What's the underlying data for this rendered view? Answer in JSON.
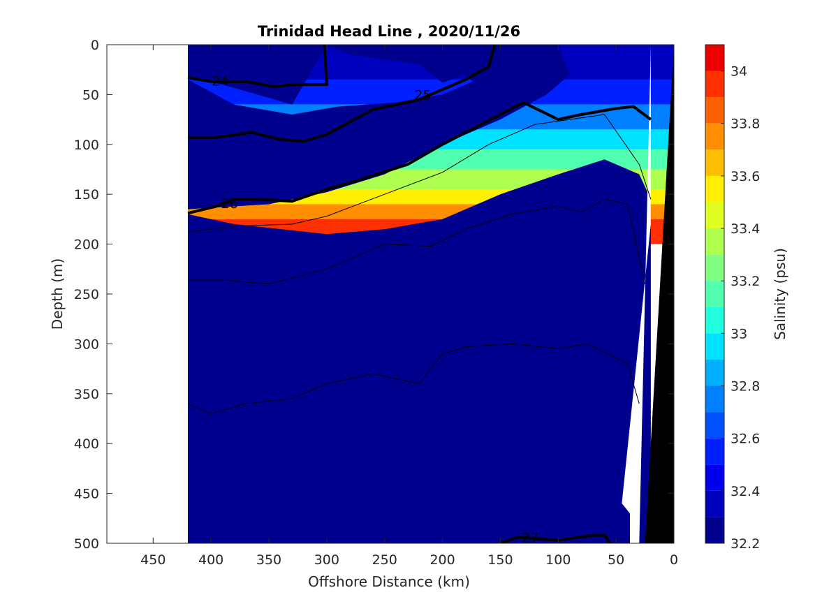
{
  "chart_data": {
    "type": "heatmap",
    "title": "Trinidad Head Line , 2020/11/26",
    "xlabel": "Offshore Distance (km)",
    "ylabel": "Depth (m)",
    "xlim": [
      490,
      0
    ],
    "ylim": [
      0,
      500
    ],
    "x_reversed": true,
    "y_reversed": true,
    "x_ticks": [
      {
        "value": 450,
        "label": "450"
      },
      {
        "value": 400,
        "label": "400"
      },
      {
        "value": 350,
        "label": "350"
      },
      {
        "value": 300,
        "label": "300"
      },
      {
        "value": 250,
        "label": "250"
      },
      {
        "value": 200,
        "label": "200"
      },
      {
        "value": 150,
        "label": "150"
      },
      {
        "value": 100,
        "label": "100"
      },
      {
        "value": 50,
        "label": "50"
      },
      {
        "value": 0,
        "label": "0"
      }
    ],
    "y_ticks": [
      {
        "value": 0,
        "label": "0"
      },
      {
        "value": 50,
        "label": "50"
      },
      {
        "value": 100,
        "label": "100"
      },
      {
        "value": 150,
        "label": "150"
      },
      {
        "value": 200,
        "label": "200"
      },
      {
        "value": 250,
        "label": "250"
      },
      {
        "value": 300,
        "label": "300"
      },
      {
        "value": 350,
        "label": "350"
      },
      {
        "value": 400,
        "label": "400"
      },
      {
        "value": 450,
        "label": "450"
      },
      {
        "value": 500,
        "label": "500"
      }
    ],
    "colorbar": {
      "label": "Salinity (psu)",
      "range": [
        32.2,
        34.1
      ],
      "levels": [
        32.2,
        32.3,
        32.4,
        32.5,
        32.6,
        32.7,
        32.8,
        32.9,
        33.0,
        33.1,
        33.2,
        33.3,
        33.4,
        33.5,
        33.6,
        33.7,
        33.8,
        33.9,
        34.0,
        34.1
      ],
      "colors": [
        "#00008f",
        "#0000bf",
        "#0000ef",
        "#0020ff",
        "#0050ff",
        "#0080ff",
        "#00b0ff",
        "#00e0ff",
        "#20ffdf",
        "#50ffaf",
        "#80ff80",
        "#afff50",
        "#dfff20",
        "#ffef00",
        "#ffbf00",
        "#ff8f00",
        "#ff6000",
        "#ff3000",
        "#ef0000",
        "#bf0000"
      ],
      "ticks": [
        {
          "value": 32.2,
          "label": "32.2"
        },
        {
          "value": 32.4,
          "label": "32.4"
        },
        {
          "value": 32.6,
          "label": "32.6"
        },
        {
          "value": 32.8,
          "label": "32.8"
        },
        {
          "value": 33.0,
          "label": "33"
        },
        {
          "value": 33.2,
          "label": "33.2"
        },
        {
          "value": 33.4,
          "label": "33.4"
        },
        {
          "value": 33.6,
          "label": "33.6"
        },
        {
          "value": 33.8,
          "label": "33.8"
        },
        {
          "value": 34.0,
          "label": "34"
        }
      ]
    },
    "data_extent_km": [
      0,
      420
    ],
    "salinity_bands": [
      {
        "salinity": 32.3,
        "points": [
          [
            420,
            0
          ],
          [
            300,
            0
          ],
          [
            280,
            10
          ],
          [
            220,
            20
          ],
          [
            200,
            38
          ],
          [
            180,
            30
          ],
          [
            160,
            52
          ],
          [
            140,
            22
          ],
          [
            130,
            0
          ],
          [
            300,
            0
          ],
          [
            330,
            60
          ],
          [
            360,
            50
          ],
          [
            390,
            40
          ],
          [
            420,
            33
          ]
        ]
      },
      {
        "salinity": 33.5,
        "points": [
          [
            420,
            35
          ],
          [
            380,
            60
          ],
          [
            330,
            70
          ],
          [
            290,
            62
          ],
          [
            240,
            58
          ],
          [
            200,
            50
          ],
          [
            170,
            35
          ],
          [
            150,
            20
          ],
          [
            130,
            0
          ],
          [
            100,
            0
          ],
          [
            90,
            30
          ],
          [
            110,
            50
          ],
          [
            150,
            75
          ],
          [
            200,
            100
          ],
          [
            250,
            130
          ],
          [
            300,
            148
          ],
          [
            350,
            160
          ],
          [
            420,
            165
          ]
        ]
      },
      {
        "salinity": 34.0,
        "points": [
          [
            420,
            170
          ],
          [
            380,
            180
          ],
          [
            300,
            190
          ],
          [
            250,
            185
          ],
          [
            200,
            175
          ],
          [
            150,
            150
          ],
          [
            100,
            130
          ],
          [
            60,
            115
          ],
          [
            30,
            130
          ],
          [
            20,
            155
          ],
          [
            20,
            500
          ],
          [
            420,
            500
          ]
        ]
      },
      {
        "salinity": 34.1,
        "points": [
          [
            420,
            300
          ],
          [
            390,
            320
          ],
          [
            370,
            240
          ],
          [
            320,
            260
          ],
          [
            300,
            250
          ],
          [
            250,
            225
          ],
          [
            180,
            200
          ],
          [
            150,
            215
          ],
          [
            130,
            220
          ],
          [
            120,
            250
          ],
          [
            110,
            290
          ],
          [
            100,
            320
          ],
          [
            80,
            260
          ],
          [
            70,
            175
          ],
          [
            50,
            140
          ],
          [
            40,
            150
          ],
          [
            35,
            160
          ],
          [
            30,
            500
          ],
          [
            420,
            500
          ]
        ]
      }
    ],
    "contours": [
      {
        "label": "24",
        "label_position": [
          392,
          36
        ],
        "weight": "thick",
        "points": [
          [
            420,
            33
          ],
          [
            400,
            37
          ],
          [
            370,
            37
          ],
          [
            345,
            42
          ],
          [
            330,
            40
          ],
          [
            300,
            40
          ],
          [
            302,
            0
          ]
        ]
      },
      {
        "label": "25",
        "label_position": [
          217,
          50
        ],
        "weight": "thick",
        "points": [
          [
            420,
            93
          ],
          [
            395,
            93
          ],
          [
            365,
            88
          ],
          [
            340,
            95
          ],
          [
            320,
            97
          ],
          [
            300,
            90
          ],
          [
            260,
            65
          ],
          [
            220,
            55
          ],
          [
            180,
            35
          ],
          [
            160,
            22
          ],
          [
            155,
            0
          ]
        ]
      },
      {
        "label": "26",
        "label_position": [
          384,
          159
        ],
        "weight": "thick",
        "points": [
          [
            420,
            169
          ],
          [
            395,
            162
          ],
          [
            380,
            155
          ],
          [
            360,
            155
          ],
          [
            330,
            157
          ],
          [
            300,
            145
          ],
          [
            270,
            135
          ],
          [
            230,
            120
          ],
          [
            200,
            100
          ],
          [
            150,
            70
          ],
          [
            130,
            58
          ],
          [
            100,
            75
          ],
          [
            80,
            70
          ],
          [
            50,
            64
          ],
          [
            35,
            62
          ],
          [
            20,
            75
          ]
        ]
      },
      {
        "label": "27",
        "label_position": [
          124,
          494
        ],
        "weight": "thick",
        "points": [
          [
            150,
            500
          ],
          [
            135,
            494
          ],
          [
            100,
            497
          ],
          [
            70,
            492
          ],
          [
            60,
            492
          ],
          [
            55,
            500
          ]
        ]
      },
      {
        "label": "",
        "weight": "thin",
        "points": [
          [
            420,
            188
          ],
          [
            380,
            182
          ],
          [
            330,
            180
          ],
          [
            300,
            172
          ],
          [
            250,
            150
          ],
          [
            200,
            128
          ],
          [
            160,
            100
          ],
          [
            120,
            80
          ],
          [
            90,
            75
          ],
          [
            60,
            70
          ],
          [
            30,
            120
          ],
          [
            20,
            155
          ]
        ]
      },
      {
        "label": "",
        "weight": "thin",
        "points": [
          [
            420,
            236
          ],
          [
            390,
            236
          ],
          [
            350,
            240
          ],
          [
            300,
            225
          ],
          [
            250,
            200
          ],
          [
            210,
            202
          ],
          [
            180,
            185
          ],
          [
            140,
            170
          ],
          [
            100,
            162
          ],
          [
            80,
            168
          ],
          [
            60,
            155
          ],
          [
            40,
            160
          ],
          [
            25,
            240
          ]
        ]
      },
      {
        "label": "",
        "weight": "thin",
        "points": [
          [
            420,
            360
          ],
          [
            400,
            370
          ],
          [
            370,
            360
          ],
          [
            330,
            355
          ],
          [
            300,
            340
          ],
          [
            260,
            330
          ],
          [
            220,
            340
          ],
          [
            200,
            310
          ],
          [
            180,
            303
          ],
          [
            140,
            300
          ],
          [
            100,
            305
          ],
          [
            75,
            300
          ],
          [
            40,
            320
          ],
          [
            30,
            360
          ]
        ]
      }
    ],
    "seafloor_polygon": [
      [
        0,
        0
      ],
      [
        25,
        500
      ],
      [
        0,
        500
      ]
    ],
    "whitespace_polygon": [
      [
        20,
        0
      ],
      [
        30,
        500
      ],
      [
        38,
        500
      ],
      [
        38,
        470
      ],
      [
        45,
        460
      ],
      [
        20,
        180
      ],
      [
        20,
        0
      ]
    ]
  }
}
